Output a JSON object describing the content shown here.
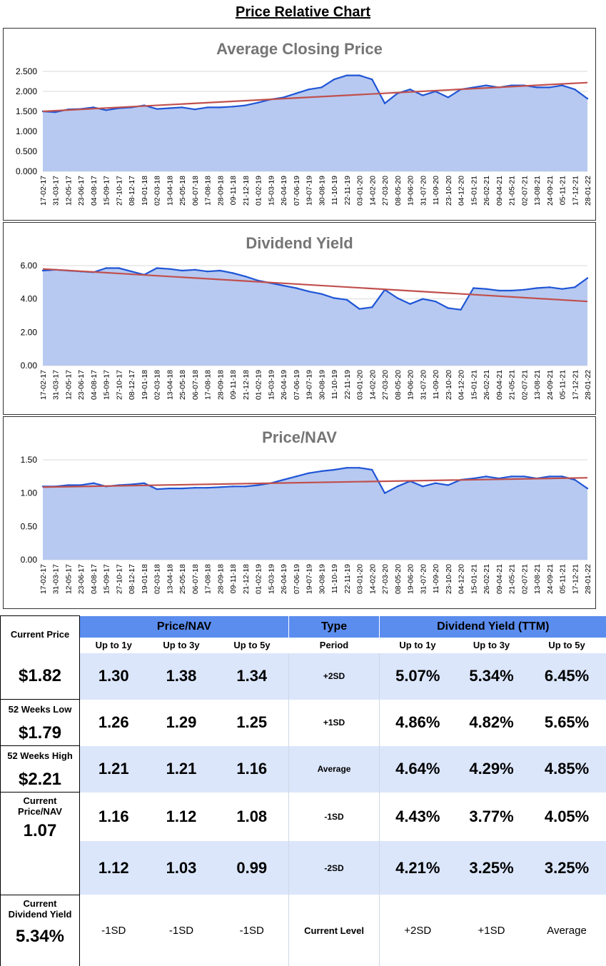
{
  "page_title": "Price Relative Chart",
  "colors": {
    "fill": "#b7c9f1",
    "line": "#1f55d6",
    "trend": "#c0504d",
    "header": "#5b8def",
    "row_band": "#dbe6fb"
  },
  "chart_data": [
    {
      "type": "area",
      "title": "Average Closing Price",
      "ylim": [
        0,
        2.5
      ],
      "yticks": [
        "0.000",
        "0.500",
        "1.000",
        "1.500",
        "2.000",
        "2.500"
      ],
      "x": [
        "17-02-17",
        "31-03-17",
        "12-05-17",
        "23-06-17",
        "04-08-17",
        "15-09-17",
        "27-10-17",
        "08-12-17",
        "19-01-18",
        "02-03-18",
        "13-04-18",
        "25-05-18",
        "06-07-18",
        "17-08-18",
        "28-09-18",
        "09-11-18",
        "21-12-18",
        "01-02-19",
        "15-03-19",
        "26-04-19",
        "07-06-19",
        "19-07-19",
        "30-08-19",
        "11-10-19",
        "22-11-19",
        "03-01-20",
        "14-02-20",
        "27-03-20",
        "08-05-20",
        "19-06-20",
        "31-07-20",
        "11-09-20",
        "23-10-20",
        "04-12-20",
        "15-01-21",
        "26-02-21",
        "09-04-21",
        "21-05-21",
        "02-07-21",
        "13-08-21",
        "24-09-21",
        "05-11-21",
        "17-12-21",
        "28-01-22"
      ],
      "values": [
        1.5,
        1.48,
        1.55,
        1.56,
        1.6,
        1.53,
        1.58,
        1.6,
        1.65,
        1.56,
        1.58,
        1.6,
        1.55,
        1.6,
        1.6,
        1.62,
        1.65,
        1.72,
        1.8,
        1.85,
        1.95,
        2.05,
        2.1,
        2.3,
        2.4,
        2.4,
        2.3,
        1.7,
        1.95,
        2.05,
        1.9,
        2.0,
        1.85,
        2.05,
        2.1,
        2.15,
        2.1,
        2.15,
        2.15,
        2.1,
        2.1,
        2.15,
        2.05,
        1.82
      ],
      "trend": [
        1.5,
        2.22
      ]
    },
    {
      "type": "area",
      "title": "Dividend Yield",
      "ylim": [
        0,
        6
      ],
      "yticks": [
        "0.00",
        "2.00",
        "4.00",
        "6.00"
      ],
      "x": [
        "17-02-17",
        "31-03-17",
        "12-05-17",
        "23-06-17",
        "04-08-17",
        "15-09-17",
        "27-10-17",
        "08-12-17",
        "19-01-18",
        "02-03-18",
        "13-04-18",
        "25-05-18",
        "06-07-18",
        "17-08-18",
        "28-09-18",
        "09-11-18",
        "21-12-18",
        "01-02-19",
        "15-03-19",
        "26-04-19",
        "07-06-19",
        "19-07-19",
        "30-08-19",
        "11-10-19",
        "22-11-19",
        "03-01-20",
        "14-02-20",
        "27-03-20",
        "08-05-20",
        "19-06-20",
        "31-07-20",
        "11-09-20",
        "23-10-20",
        "04-12-20",
        "15-01-21",
        "26-02-21",
        "09-04-21",
        "21-05-21",
        "02-07-21",
        "13-08-21",
        "24-09-21",
        "05-11-21",
        "17-12-21",
        "28-01-22"
      ],
      "values": [
        5.7,
        5.75,
        5.7,
        5.65,
        5.6,
        5.85,
        5.85,
        5.65,
        5.45,
        5.85,
        5.8,
        5.7,
        5.75,
        5.65,
        5.7,
        5.55,
        5.35,
        5.1,
        4.95,
        4.8,
        4.65,
        4.45,
        4.3,
        4.05,
        3.95,
        3.4,
        3.5,
        4.55,
        4.05,
        3.7,
        4.0,
        3.85,
        3.45,
        3.35,
        4.65,
        4.6,
        4.5,
        4.5,
        4.55,
        4.65,
        4.7,
        4.6,
        4.7,
        5.25
      ],
      "trend": [
        5.8,
        3.85
      ]
    },
    {
      "type": "area",
      "title": "Price/NAV",
      "ylim": [
        0,
        1.5
      ],
      "yticks": [
        "0.00",
        "0.50",
        "1.00",
        "1.50"
      ],
      "x": [
        "17-02-17",
        "31-03-17",
        "12-05-17",
        "23-06-17",
        "04-08-17",
        "15-09-17",
        "27-10-17",
        "08-12-17",
        "19-01-18",
        "02-03-18",
        "13-04-18",
        "25-05-18",
        "06-07-18",
        "17-08-18",
        "28-09-18",
        "09-11-18",
        "21-12-18",
        "01-02-19",
        "15-03-19",
        "26-04-19",
        "07-06-19",
        "19-07-19",
        "30-08-19",
        "11-10-19",
        "22-11-19",
        "03-01-20",
        "14-02-20",
        "27-03-20",
        "08-05-20",
        "19-06-20",
        "31-07-20",
        "11-09-20",
        "23-10-20",
        "04-12-20",
        "15-01-21",
        "26-02-21",
        "09-04-21",
        "21-05-21",
        "02-07-21",
        "13-08-21",
        "24-09-21",
        "05-11-21",
        "17-12-21",
        "28-01-22"
      ],
      "values": [
        1.1,
        1.1,
        1.12,
        1.12,
        1.15,
        1.1,
        1.12,
        1.13,
        1.15,
        1.06,
        1.07,
        1.07,
        1.08,
        1.08,
        1.09,
        1.1,
        1.1,
        1.12,
        1.15,
        1.2,
        1.25,
        1.3,
        1.33,
        1.35,
        1.38,
        1.38,
        1.35,
        1.0,
        1.1,
        1.18,
        1.1,
        1.15,
        1.12,
        1.2,
        1.22,
        1.25,
        1.22,
        1.25,
        1.25,
        1.22,
        1.25,
        1.25,
        1.2,
        1.07
      ],
      "trend": [
        1.09,
        1.23
      ]
    }
  ],
  "stats": {
    "labels": {
      "current_price": "Current Price",
      "current_price_val": "$1.82",
      "low52": "52 Weeks Low",
      "low52_val": "$1.79",
      "high52": "52 Weeks High",
      "high52_val": "$2.21",
      "cur_pnav": "Current Price/NAV",
      "cur_pnav_val": "1.07",
      "cur_dy": "Current Dividend Yield",
      "cur_dy_val": "5.34%"
    },
    "headers": {
      "pnav": "Price/NAV",
      "type": "Type",
      "dy": "Dividend Yield (TTM)"
    },
    "subheaders": {
      "p1": "Up to 1y",
      "p3": "Up to 3y",
      "p5": "Up to 5y",
      "period": "Period",
      "d1": "Up to 1y",
      "d3": "Up to 3y",
      "d5": "Up to 5y"
    },
    "rows": [
      {
        "p1": "1.30",
        "p3": "1.38",
        "p5": "1.34",
        "type": "+2SD",
        "d1": "5.07%",
        "d3": "5.34%",
        "d5": "6.45%"
      },
      {
        "p1": "1.26",
        "p3": "1.29",
        "p5": "1.25",
        "type": "+1SD",
        "d1": "4.86%",
        "d3": "4.82%",
        "d5": "5.65%"
      },
      {
        "p1": "1.21",
        "p3": "1.21",
        "p5": "1.16",
        "type": "Average",
        "d1": "4.64%",
        "d3": "4.29%",
        "d5": "4.85%"
      },
      {
        "p1": "1.16",
        "p3": "1.12",
        "p5": "1.08",
        "type": "-1SD",
        "d1": "4.43%",
        "d3": "3.77%",
        "d5": "4.05%"
      },
      {
        "p1": "1.12",
        "p3": "1.03",
        "p5": "0.99",
        "type": "-2SD",
        "d1": "4.21%",
        "d3": "3.25%",
        "d5": "3.25%"
      }
    ],
    "footer": {
      "p1": "-1SD",
      "p3": "-1SD",
      "p5": "-1SD",
      "type": "Current Level",
      "d1": "+2SD",
      "d3": "+1SD",
      "d5": "Average"
    }
  }
}
